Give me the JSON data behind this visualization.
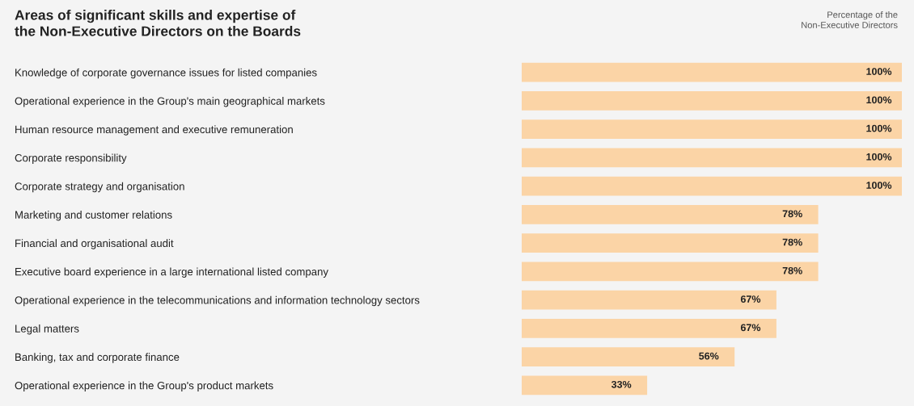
{
  "chart_data": {
    "type": "bar",
    "orientation": "horizontal",
    "title": "Areas of significant skills and expertise of\nthe Non-Executive Directors on the Boards",
    "annotations": [
      "Percentage of the\nNon-Executive Directors"
    ],
    "categories": [
      "Knowledge of corporate governance issues for listed companies",
      "Operational experience in the Group's main geographical markets",
      "Human resource management and executive remuneration",
      "Corporate responsibility",
      "Corporate strategy and organisation",
      "Marketing and customer relations",
      "Financial and organisational audit",
      "Executive board experience in a large international listed company",
      "Operational experience in the telecommunications and information technology sectors",
      "Legal matters",
      "Banking, tax and corporate finance",
      "Operational experience in the Group's product markets"
    ],
    "values": [
      100,
      100,
      100,
      100,
      100,
      78,
      78,
      78,
      67,
      67,
      56,
      33
    ],
    "value_labels": [
      "100%",
      "100%",
      "100%",
      "100%",
      "100%",
      "78%",
      "78%",
      "78%",
      "67%",
      "67%",
      "56%",
      "33%"
    ],
    "color": "#fbd4a6",
    "xlim": [
      0,
      100
    ],
    "tick_labels": "y",
    "grid": false,
    "legend": false
  }
}
